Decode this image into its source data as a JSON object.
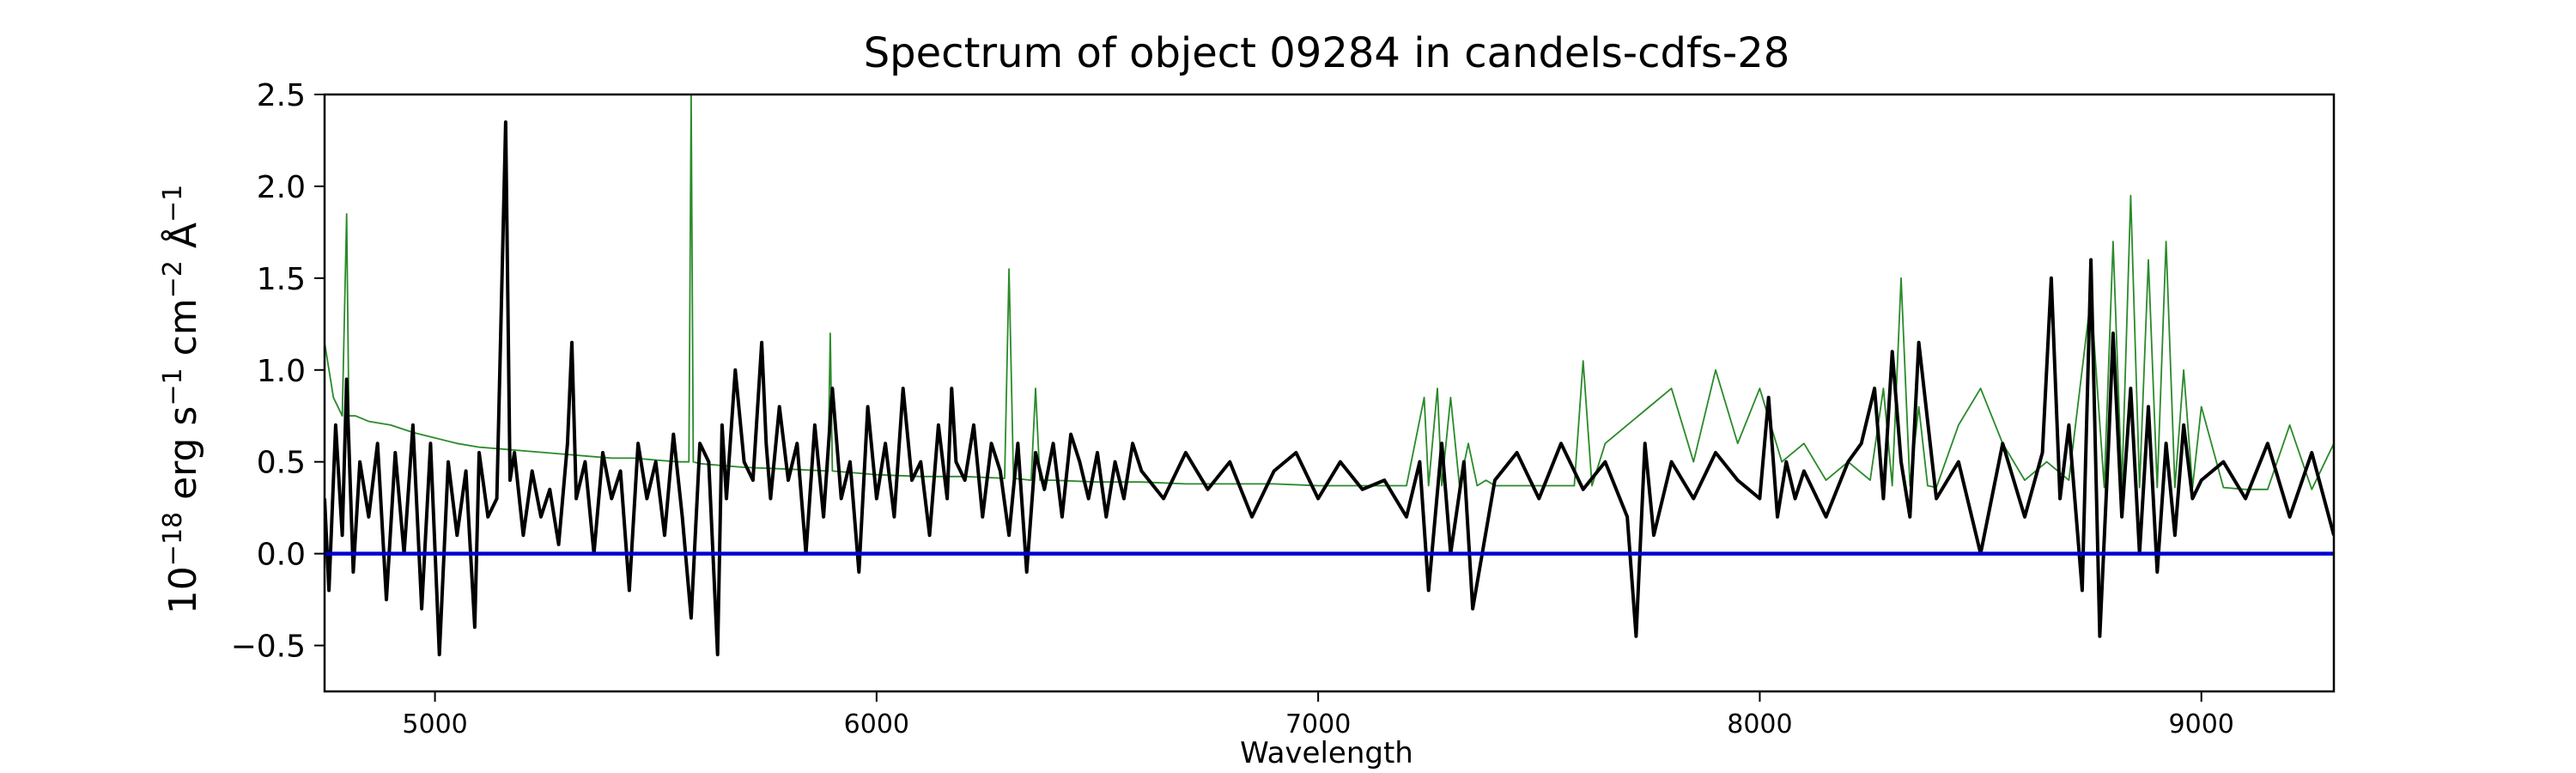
{
  "chart_data": {
    "type": "line",
    "title": "Spectrum of object 09284 in candels-cdfs-28",
    "xlabel": "Wavelength",
    "ylabel_base": "10",
    "ylabel_exp": "−18",
    "ylabel_units": [
      {
        "text": " erg s",
        "sup": "−1"
      },
      {
        "text": " cm",
        "sup": "−2"
      },
      {
        "text": " Å",
        "sup": "−1"
      }
    ],
    "xlim": [
      4750,
      9300
    ],
    "ylim": [
      -0.75,
      2.5
    ],
    "xticks": [
      5000,
      6000,
      7000,
      8000,
      9000
    ],
    "xtick_labels": [
      "5000",
      "6000",
      "7000",
      "8000",
      "9000"
    ],
    "yticks": [
      -0.5,
      0.0,
      0.5,
      1.0,
      1.5,
      2.0,
      2.5
    ],
    "ytick_labels": [
      "−0.5",
      "0.0",
      "0.5",
      "1.0",
      "1.5",
      "2.0",
      "2.5"
    ],
    "grid": false,
    "series": [
      {
        "role": "flux",
        "color": "#000000",
        "x": [
          4750,
          4760,
          4775,
          4790,
          4800,
          4815,
          4830,
          4850,
          4870,
          4890,
          4910,
          4930,
          4950,
          4970,
          4990,
          5010,
          5030,
          5050,
          5070,
          5090,
          5100,
          5120,
          5140,
          5160,
          5170,
          5180,
          5200,
          5220,
          5240,
          5260,
          5280,
          5300,
          5310,
          5320,
          5340,
          5360,
          5380,
          5400,
          5420,
          5440,
          5460,
          5480,
          5500,
          5520,
          5540,
          5560,
          5580,
          5600,
          5620,
          5640,
          5650,
          5660,
          5680,
          5700,
          5720,
          5740,
          5750,
          5760,
          5780,
          5800,
          5820,
          5840,
          5860,
          5880,
          5900,
          5920,
          5940,
          5960,
          5980,
          6000,
          6020,
          6040,
          6060,
          6080,
          6100,
          6120,
          6140,
          6160,
          6170,
          6180,
          6200,
          6220,
          6240,
          6260,
          6280,
          6300,
          6320,
          6340,
          6360,
          6380,
          6400,
          6420,
          6440,
          6460,
          6480,
          6500,
          6520,
          6540,
          6560,
          6580,
          6600,
          6650,
          6700,
          6750,
          6800,
          6850,
          6900,
          6950,
          7000,
          7050,
          7100,
          7150,
          7200,
          7230,
          7250,
          7280,
          7300,
          7330,
          7350,
          7400,
          7450,
          7500,
          7550,
          7600,
          7650,
          7700,
          7720,
          7740,
          7760,
          7800,
          7850,
          7900,
          7950,
          8000,
          8020,
          8040,
          8060,
          8080,
          8100,
          8150,
          8200,
          8230,
          8260,
          8280,
          8300,
          8320,
          8340,
          8360,
          8400,
          8450,
          8500,
          8550,
          8600,
          8640,
          8660,
          8680,
          8700,
          8730,
          8750,
          8770,
          8790,
          8800,
          8820,
          8840,
          8860,
          8880,
          8900,
          8920,
          8940,
          8960,
          8980,
          9000,
          9050,
          9100,
          9150,
          9200,
          9250,
          9300
        ],
        "y": [
          0.3,
          -0.2,
          0.7,
          0.1,
          0.95,
          -0.1,
          0.5,
          0.2,
          0.6,
          -0.25,
          0.55,
          0.0,
          0.7,
          -0.3,
          0.6,
          -0.55,
          0.5,
          0.1,
          0.45,
          -0.4,
          0.55,
          0.2,
          0.3,
          2.35,
          0.4,
          0.55,
          0.1,
          0.45,
          0.2,
          0.35,
          0.05,
          0.6,
          1.15,
          0.3,
          0.5,
          0.0,
          0.55,
          0.3,
          0.45,
          -0.2,
          0.6,
          0.3,
          0.5,
          0.1,
          0.65,
          0.2,
          -0.35,
          0.6,
          0.5,
          -0.55,
          0.7,
          0.3,
          1.0,
          0.5,
          0.4,
          1.15,
          0.6,
          0.3,
          0.8,
          0.4,
          0.6,
          0.0,
          0.7,
          0.2,
          0.9,
          0.3,
          0.5,
          -0.1,
          0.8,
          0.3,
          0.6,
          0.2,
          0.9,
          0.4,
          0.5,
          0.1,
          0.7,
          0.3,
          0.9,
          0.5,
          0.4,
          0.7,
          0.2,
          0.6,
          0.45,
          0.1,
          0.6,
          -0.1,
          0.55,
          0.35,
          0.6,
          0.2,
          0.65,
          0.5,
          0.3,
          0.55,
          0.2,
          0.5,
          0.3,
          0.6,
          0.45,
          0.3,
          0.55,
          0.35,
          0.5,
          0.2,
          0.45,
          0.55,
          0.3,
          0.5,
          0.35,
          0.4,
          0.2,
          0.5,
          -0.2,
          0.6,
          0.0,
          0.5,
          -0.3,
          0.4,
          0.55,
          0.3,
          0.6,
          0.35,
          0.5,
          0.2,
          -0.45,
          0.6,
          0.1,
          0.5,
          0.3,
          0.55,
          0.4,
          0.3,
          0.85,
          0.2,
          0.5,
          0.3,
          0.45,
          0.2,
          0.5,
          0.6,
          0.9,
          0.3,
          1.1,
          0.5,
          0.2,
          1.15,
          0.3,
          0.5,
          0.0,
          0.6,
          0.2,
          0.55,
          1.5,
          0.3,
          0.7,
          -0.2,
          1.6,
          -0.45,
          0.6,
          1.2,
          0.2,
          0.9,
          0.0,
          0.8,
          -0.1,
          0.6,
          0.1,
          0.7,
          0.3,
          0.4,
          0.5,
          0.3,
          0.6,
          0.2,
          0.55,
          0.1
        ]
      },
      {
        "role": "model",
        "color": "#2a8a2a",
        "x": [
          4750,
          4770,
          4790,
          4800,
          4805,
          4820,
          4850,
          4900,
          4950,
          5000,
          5050,
          5100,
          5150,
          5200,
          5250,
          5300,
          5350,
          5400,
          5450,
          5500,
          5550,
          5575,
          5580,
          5585,
          5600,
          5650,
          5700,
          5800,
          5890,
          5895,
          5900,
          5950,
          6000,
          6100,
          6200,
          6290,
          6300,
          6310,
          6350,
          6360,
          6370,
          6400,
          6500,
          6600,
          6700,
          6800,
          6900,
          7000,
          7100,
          7200,
          7240,
          7250,
          7270,
          7280,
          7300,
          7320,
          7340,
          7360,
          7380,
          7400,
          7500,
          7580,
          7600,
          7620,
          7650,
          7700,
          7750,
          7800,
          7850,
          7900,
          7950,
          8000,
          8050,
          8100,
          8150,
          8200,
          8250,
          8280,
          8300,
          8320,
          8340,
          8360,
          8380,
          8400,
          8450,
          8500,
          8550,
          8600,
          8650,
          8700,
          8750,
          8780,
          8800,
          8820,
          8840,
          8860,
          8880,
          8900,
          8920,
          8940,
          8960,
          8980,
          9000,
          9050,
          9100,
          9150,
          9200,
          9250,
          9300
        ],
        "y": [
          1.15,
          0.85,
          0.75,
          1.85,
          0.75,
          0.75,
          0.72,
          0.7,
          0.66,
          0.63,
          0.6,
          0.58,
          0.57,
          0.56,
          0.55,
          0.54,
          0.53,
          0.52,
          0.52,
          0.51,
          0.5,
          0.5,
          2.5,
          0.5,
          0.49,
          0.48,
          0.47,
          0.46,
          0.45,
          1.2,
          0.45,
          0.44,
          0.43,
          0.42,
          0.42,
          0.41,
          1.55,
          0.41,
          0.4,
          0.9,
          0.4,
          0.4,
          0.39,
          0.39,
          0.38,
          0.38,
          0.38,
          0.37,
          0.37,
          0.37,
          0.85,
          0.37,
          0.9,
          0.37,
          0.85,
          0.37,
          0.6,
          0.37,
          0.4,
          0.37,
          0.37,
          0.37,
          1.05,
          0.37,
          0.6,
          0.7,
          0.8,
          0.9,
          0.5,
          1.0,
          0.6,
          0.9,
          0.5,
          0.6,
          0.4,
          0.5,
          0.4,
          0.9,
          0.37,
          1.5,
          0.37,
          0.8,
          0.37,
          0.36,
          0.7,
          0.9,
          0.6,
          0.4,
          0.5,
          0.4,
          1.4,
          0.36,
          1.7,
          0.36,
          1.95,
          0.36,
          1.6,
          0.36,
          1.7,
          0.36,
          1.0,
          0.36,
          0.8,
          0.36,
          0.35,
          0.35,
          0.7,
          0.35,
          0.6
        ]
      },
      {
        "role": "zero",
        "color": "#0000cc",
        "x": [
          4750,
          9300
        ],
        "y": [
          0.0,
          0.0
        ]
      }
    ]
  }
}
